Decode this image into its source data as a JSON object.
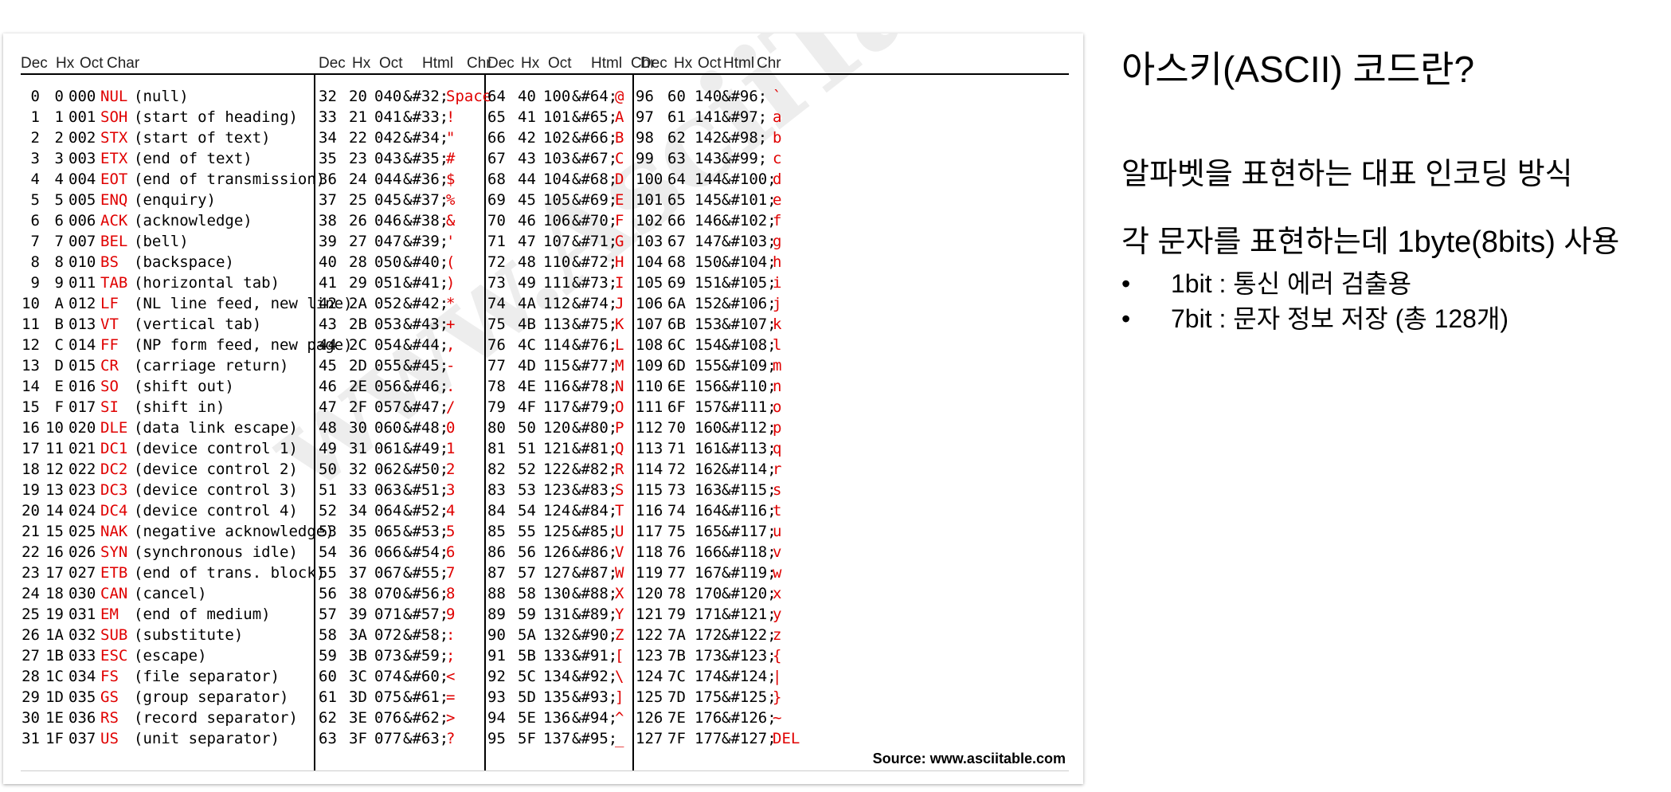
{
  "ascii_table": {
    "headers": [
      "Dec  Hx Oct  Char",
      "Dec  Hx  Oct   Html  Chr",
      "Dec  Hx  Oct   Html  Chr",
      "Dec  Hx  Oct  Html  Chr"
    ],
    "control_rows": [
      [
        "0",
        "0",
        "000",
        "NUL",
        "(null)"
      ],
      [
        "1",
        "1",
        "001",
        "SOH",
        "(start of heading)"
      ],
      [
        "2",
        "2",
        "002",
        "STX",
        "(start of text)"
      ],
      [
        "3",
        "3",
        "003",
        "ETX",
        "(end of text)"
      ],
      [
        "4",
        "4",
        "004",
        "EOT",
        "(end of transmission)"
      ],
      [
        "5",
        "5",
        "005",
        "ENQ",
        "(enquiry)"
      ],
      [
        "6",
        "6",
        "006",
        "ACK",
        "(acknowledge)"
      ],
      [
        "7",
        "7",
        "007",
        "BEL",
        "(bell)"
      ],
      [
        "8",
        "8",
        "010",
        "BS",
        "(backspace)"
      ],
      [
        "9",
        "9",
        "011",
        "TAB",
        "(horizontal tab)"
      ],
      [
        "10",
        "A",
        "012",
        "LF",
        "(NL line feed, new line)"
      ],
      [
        "11",
        "B",
        "013",
        "VT",
        "(vertical tab)"
      ],
      [
        "12",
        "C",
        "014",
        "FF",
        "(NP form feed, new page)"
      ],
      [
        "13",
        "D",
        "015",
        "CR",
        "(carriage return)"
      ],
      [
        "14",
        "E",
        "016",
        "SO",
        "(shift out)"
      ],
      [
        "15",
        "F",
        "017",
        "SI",
        "(shift in)"
      ],
      [
        "16",
        "10",
        "020",
        "DLE",
        "(data link escape)"
      ],
      [
        "17",
        "11",
        "021",
        "DC1",
        "(device control 1)"
      ],
      [
        "18",
        "12",
        "022",
        "DC2",
        "(device control 2)"
      ],
      [
        "19",
        "13",
        "023",
        "DC3",
        "(device control 3)"
      ],
      [
        "20",
        "14",
        "024",
        "DC4",
        "(device control 4)"
      ],
      [
        "21",
        "15",
        "025",
        "NAK",
        "(negative acknowledge)"
      ],
      [
        "22",
        "16",
        "026",
        "SYN",
        "(synchronous idle)"
      ],
      [
        "23",
        "17",
        "027",
        "ETB",
        "(end of trans. block)"
      ],
      [
        "24",
        "18",
        "030",
        "CAN",
        "(cancel)"
      ],
      [
        "25",
        "19",
        "031",
        "EM",
        "(end of medium)"
      ],
      [
        "26",
        "1A",
        "032",
        "SUB",
        "(substitute)"
      ],
      [
        "27",
        "1B",
        "033",
        "ESC",
        "(escape)"
      ],
      [
        "28",
        "1C",
        "034",
        "FS",
        "(file separator)"
      ],
      [
        "29",
        "1D",
        "035",
        "GS",
        "(group separator)"
      ],
      [
        "30",
        "1E",
        "036",
        "RS",
        "(record separator)"
      ],
      [
        "31",
        "1F",
        "037",
        "US",
        "(unit separator)"
      ]
    ],
    "printable_columns": [
      [
        [
          "32",
          "20",
          "040",
          "&#32;",
          "Space"
        ],
        [
          "33",
          "21",
          "041",
          "&#33;",
          "!"
        ],
        [
          "34",
          "22",
          "042",
          "&#34;",
          "\""
        ],
        [
          "35",
          "23",
          "043",
          "&#35;",
          "#"
        ],
        [
          "36",
          "24",
          "044",
          "&#36;",
          "$"
        ],
        [
          "37",
          "25",
          "045",
          "&#37;",
          "%"
        ],
        [
          "38",
          "26",
          "046",
          "&#38;",
          "&"
        ],
        [
          "39",
          "27",
          "047",
          "&#39;",
          "'"
        ],
        [
          "40",
          "28",
          "050",
          "&#40;",
          "("
        ],
        [
          "41",
          "29",
          "051",
          "&#41;",
          ")"
        ],
        [
          "42",
          "2A",
          "052",
          "&#42;",
          "*"
        ],
        [
          "43",
          "2B",
          "053",
          "&#43;",
          "+"
        ],
        [
          "44",
          "2C",
          "054",
          "&#44;",
          ","
        ],
        [
          "45",
          "2D",
          "055",
          "&#45;",
          "-"
        ],
        [
          "46",
          "2E",
          "056",
          "&#46;",
          "."
        ],
        [
          "47",
          "2F",
          "057",
          "&#47;",
          "/"
        ],
        [
          "48",
          "30",
          "060",
          "&#48;",
          "0"
        ],
        [
          "49",
          "31",
          "061",
          "&#49;",
          "1"
        ],
        [
          "50",
          "32",
          "062",
          "&#50;",
          "2"
        ],
        [
          "51",
          "33",
          "063",
          "&#51;",
          "3"
        ],
        [
          "52",
          "34",
          "064",
          "&#52;",
          "4"
        ],
        [
          "53",
          "35",
          "065",
          "&#53;",
          "5"
        ],
        [
          "54",
          "36",
          "066",
          "&#54;",
          "6"
        ],
        [
          "55",
          "37",
          "067",
          "&#55;",
          "7"
        ],
        [
          "56",
          "38",
          "070",
          "&#56;",
          "8"
        ],
        [
          "57",
          "39",
          "071",
          "&#57;",
          "9"
        ],
        [
          "58",
          "3A",
          "072",
          "&#58;",
          ":"
        ],
        [
          "59",
          "3B",
          "073",
          "&#59;",
          ";"
        ],
        [
          "60",
          "3C",
          "074",
          "&#60;",
          "<"
        ],
        [
          "61",
          "3D",
          "075",
          "&#61;",
          "="
        ],
        [
          "62",
          "3E",
          "076",
          "&#62;",
          ">"
        ],
        [
          "63",
          "3F",
          "077",
          "&#63;",
          "?"
        ]
      ],
      [
        [
          "64",
          "40",
          "100",
          "&#64;",
          "@"
        ],
        [
          "65",
          "41",
          "101",
          "&#65;",
          "A"
        ],
        [
          "66",
          "42",
          "102",
          "&#66;",
          "B"
        ],
        [
          "67",
          "43",
          "103",
          "&#67;",
          "C"
        ],
        [
          "68",
          "44",
          "104",
          "&#68;",
          "D"
        ],
        [
          "69",
          "45",
          "105",
          "&#69;",
          "E"
        ],
        [
          "70",
          "46",
          "106",
          "&#70;",
          "F"
        ],
        [
          "71",
          "47",
          "107",
          "&#71;",
          "G"
        ],
        [
          "72",
          "48",
          "110",
          "&#72;",
          "H"
        ],
        [
          "73",
          "49",
          "111",
          "&#73;",
          "I"
        ],
        [
          "74",
          "4A",
          "112",
          "&#74;",
          "J"
        ],
        [
          "75",
          "4B",
          "113",
          "&#75;",
          "K"
        ],
        [
          "76",
          "4C",
          "114",
          "&#76;",
          "L"
        ],
        [
          "77",
          "4D",
          "115",
          "&#77;",
          "M"
        ],
        [
          "78",
          "4E",
          "116",
          "&#78;",
          "N"
        ],
        [
          "79",
          "4F",
          "117",
          "&#79;",
          "O"
        ],
        [
          "80",
          "50",
          "120",
          "&#80;",
          "P"
        ],
        [
          "81",
          "51",
          "121",
          "&#81;",
          "Q"
        ],
        [
          "82",
          "52",
          "122",
          "&#82;",
          "R"
        ],
        [
          "83",
          "53",
          "123",
          "&#83;",
          "S"
        ],
        [
          "84",
          "54",
          "124",
          "&#84;",
          "T"
        ],
        [
          "85",
          "55",
          "125",
          "&#85;",
          "U"
        ],
        [
          "86",
          "56",
          "126",
          "&#86;",
          "V"
        ],
        [
          "87",
          "57",
          "127",
          "&#87;",
          "W"
        ],
        [
          "88",
          "58",
          "130",
          "&#88;",
          "X"
        ],
        [
          "89",
          "59",
          "131",
          "&#89;",
          "Y"
        ],
        [
          "90",
          "5A",
          "132",
          "&#90;",
          "Z"
        ],
        [
          "91",
          "5B",
          "133",
          "&#91;",
          "["
        ],
        [
          "92",
          "5C",
          "134",
          "&#92;",
          "\\"
        ],
        [
          "93",
          "5D",
          "135",
          "&#93;",
          "]"
        ],
        [
          "94",
          "5E",
          "136",
          "&#94;",
          "^"
        ],
        [
          "95",
          "5F",
          "137",
          "&#95;",
          "_"
        ]
      ],
      [
        [
          "96",
          "60",
          "140",
          "&#96;",
          "`"
        ],
        [
          "97",
          "61",
          "141",
          "&#97;",
          "a"
        ],
        [
          "98",
          "62",
          "142",
          "&#98;",
          "b"
        ],
        [
          "99",
          "63",
          "143",
          "&#99;",
          "c"
        ],
        [
          "100",
          "64",
          "144",
          "&#100;",
          "d"
        ],
        [
          "101",
          "65",
          "145",
          "&#101;",
          "e"
        ],
        [
          "102",
          "66",
          "146",
          "&#102;",
          "f"
        ],
        [
          "103",
          "67",
          "147",
          "&#103;",
          "g"
        ],
        [
          "104",
          "68",
          "150",
          "&#104;",
          "h"
        ],
        [
          "105",
          "69",
          "151",
          "&#105;",
          "i"
        ],
        [
          "106",
          "6A",
          "152",
          "&#106;",
          "j"
        ],
        [
          "107",
          "6B",
          "153",
          "&#107;",
          "k"
        ],
        [
          "108",
          "6C",
          "154",
          "&#108;",
          "l"
        ],
        [
          "109",
          "6D",
          "155",
          "&#109;",
          "m"
        ],
        [
          "110",
          "6E",
          "156",
          "&#110;",
          "n"
        ],
        [
          "111",
          "6F",
          "157",
          "&#111;",
          "o"
        ],
        [
          "112",
          "70",
          "160",
          "&#112;",
          "p"
        ],
        [
          "113",
          "71",
          "161",
          "&#113;",
          "q"
        ],
        [
          "114",
          "72",
          "162",
          "&#114;",
          "r"
        ],
        [
          "115",
          "73",
          "163",
          "&#115;",
          "s"
        ],
        [
          "116",
          "74",
          "164",
          "&#116;",
          "t"
        ],
        [
          "117",
          "75",
          "165",
          "&#117;",
          "u"
        ],
        [
          "118",
          "76",
          "166",
          "&#118;",
          "v"
        ],
        [
          "119",
          "77",
          "167",
          "&#119;",
          "w"
        ],
        [
          "120",
          "78",
          "170",
          "&#120;",
          "x"
        ],
        [
          "121",
          "79",
          "171",
          "&#121;",
          "y"
        ],
        [
          "122",
          "7A",
          "172",
          "&#122;",
          "z"
        ],
        [
          "123",
          "7B",
          "173",
          "&#123;",
          "{"
        ],
        [
          "124",
          "7C",
          "174",
          "&#124;",
          "|"
        ],
        [
          "125",
          "7D",
          "175",
          "&#125;",
          "}"
        ],
        [
          "126",
          "7E",
          "176",
          "&#126;",
          "~"
        ],
        [
          "127",
          "7F",
          "177",
          "&#127;",
          "DEL"
        ]
      ]
    ],
    "watermark": "www.AsciiTable.com",
    "source": "Source: www.asciitable.com",
    "accent_color": "#e00000"
  },
  "panel": {
    "title": "아스키(ASCII) 코드란?",
    "description": "알파벳을 표현하는 대표 인코딩 방식",
    "usage": "각 문자를 표현하는데 1byte(8bits) 사용",
    "bullets": [
      "1bit : 통신 에러 검출용",
      "7bit : 문자 정보 저장 (총 128개)"
    ]
  }
}
